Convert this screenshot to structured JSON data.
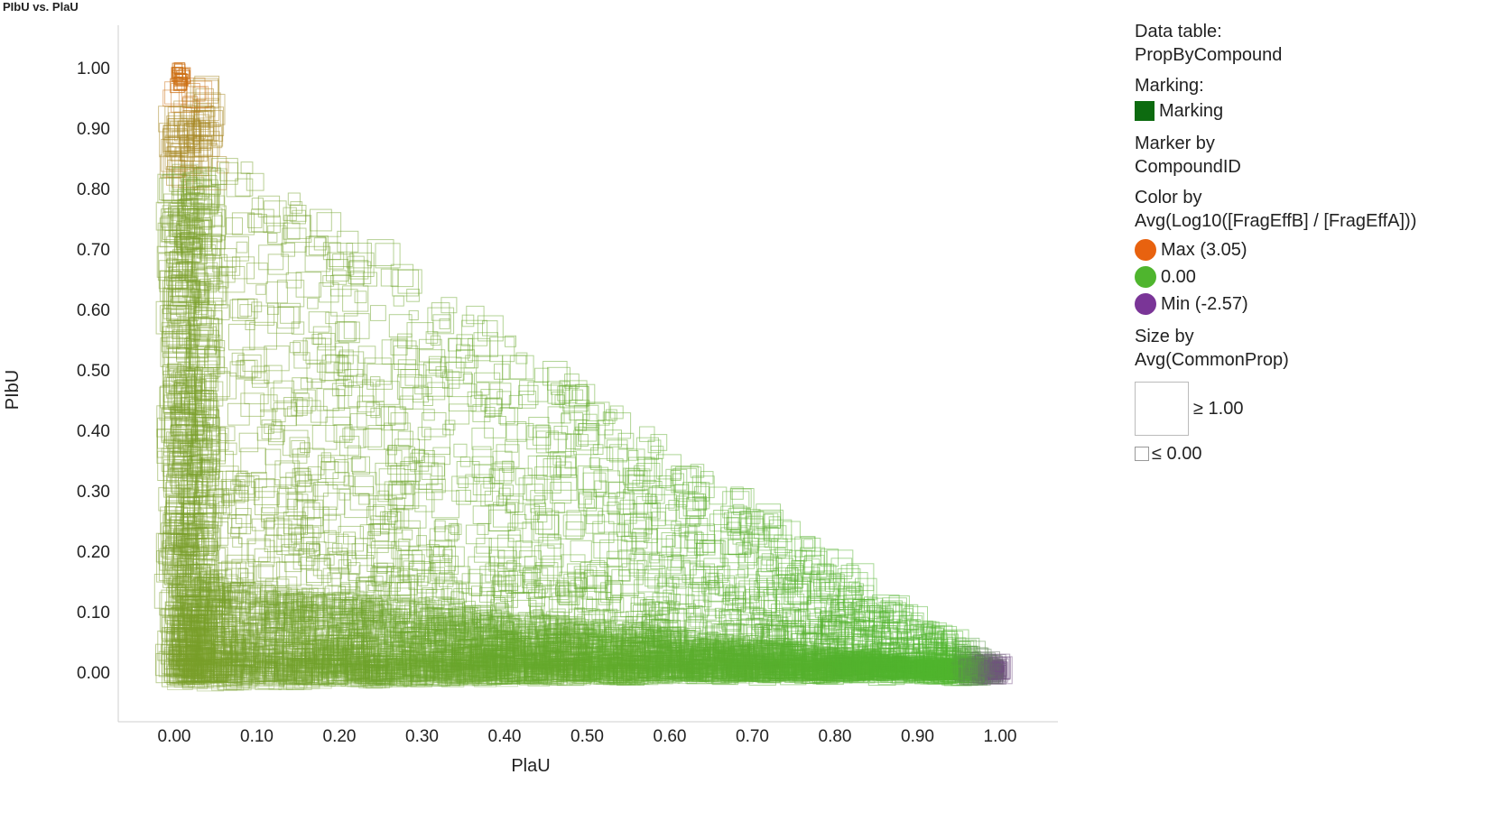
{
  "plot": {
    "title": "PIbU vs. PlaU"
  },
  "chart_data": {
    "type": "scatter",
    "title": "PIbU vs. PlaU",
    "xlabel": "PlaU",
    "ylabel": "PIbU",
    "xlim": [
      -0.065,
      1.07
    ],
    "ylim": [
      -0.085,
      1.07
    ],
    "x_ticks": [
      "0.00",
      "0.10",
      "0.20",
      "0.30",
      "0.40",
      "0.50",
      "0.60",
      "0.70",
      "0.80",
      "0.90",
      "1.00"
    ],
    "y_ticks": [
      "1.00",
      "0.90",
      "0.80",
      "0.70",
      "0.60",
      "0.50",
      "0.40",
      "0.30",
      "0.20",
      "0.10",
      "0.00"
    ],
    "marker": "square-outline",
    "grid": false,
    "legend_position": "right",
    "colors": {
      "max": "#e8620f",
      "mid": "#4fb52e",
      "min": "#7a3597",
      "marking": "#0d6b10"
    },
    "color_range": {
      "max": 3.05,
      "mid": 0.0,
      "min": -2.57
    },
    "size_range": {
      "max": 1.0,
      "min": 0.0
    }
  },
  "legend": {
    "data_table_label": "Data table:",
    "data_table_value": "PropByCompound",
    "marking_label": "Marking:",
    "marking_value": "Marking",
    "marker_by_label": "Marker by",
    "marker_by_value": "CompoundID",
    "color_by_label": "Color by",
    "color_by_value": "Avg(Log10([FragEffB] / [FragEffA]))",
    "color_max": "Max (3.05)",
    "color_mid": "0.00",
    "color_min": "Min (-2.57)",
    "size_by_label": "Size by",
    "size_by_value": "Avg(CommonProp)",
    "size_max": "≥ 1.00",
    "size_min": "≤ 0.00"
  }
}
